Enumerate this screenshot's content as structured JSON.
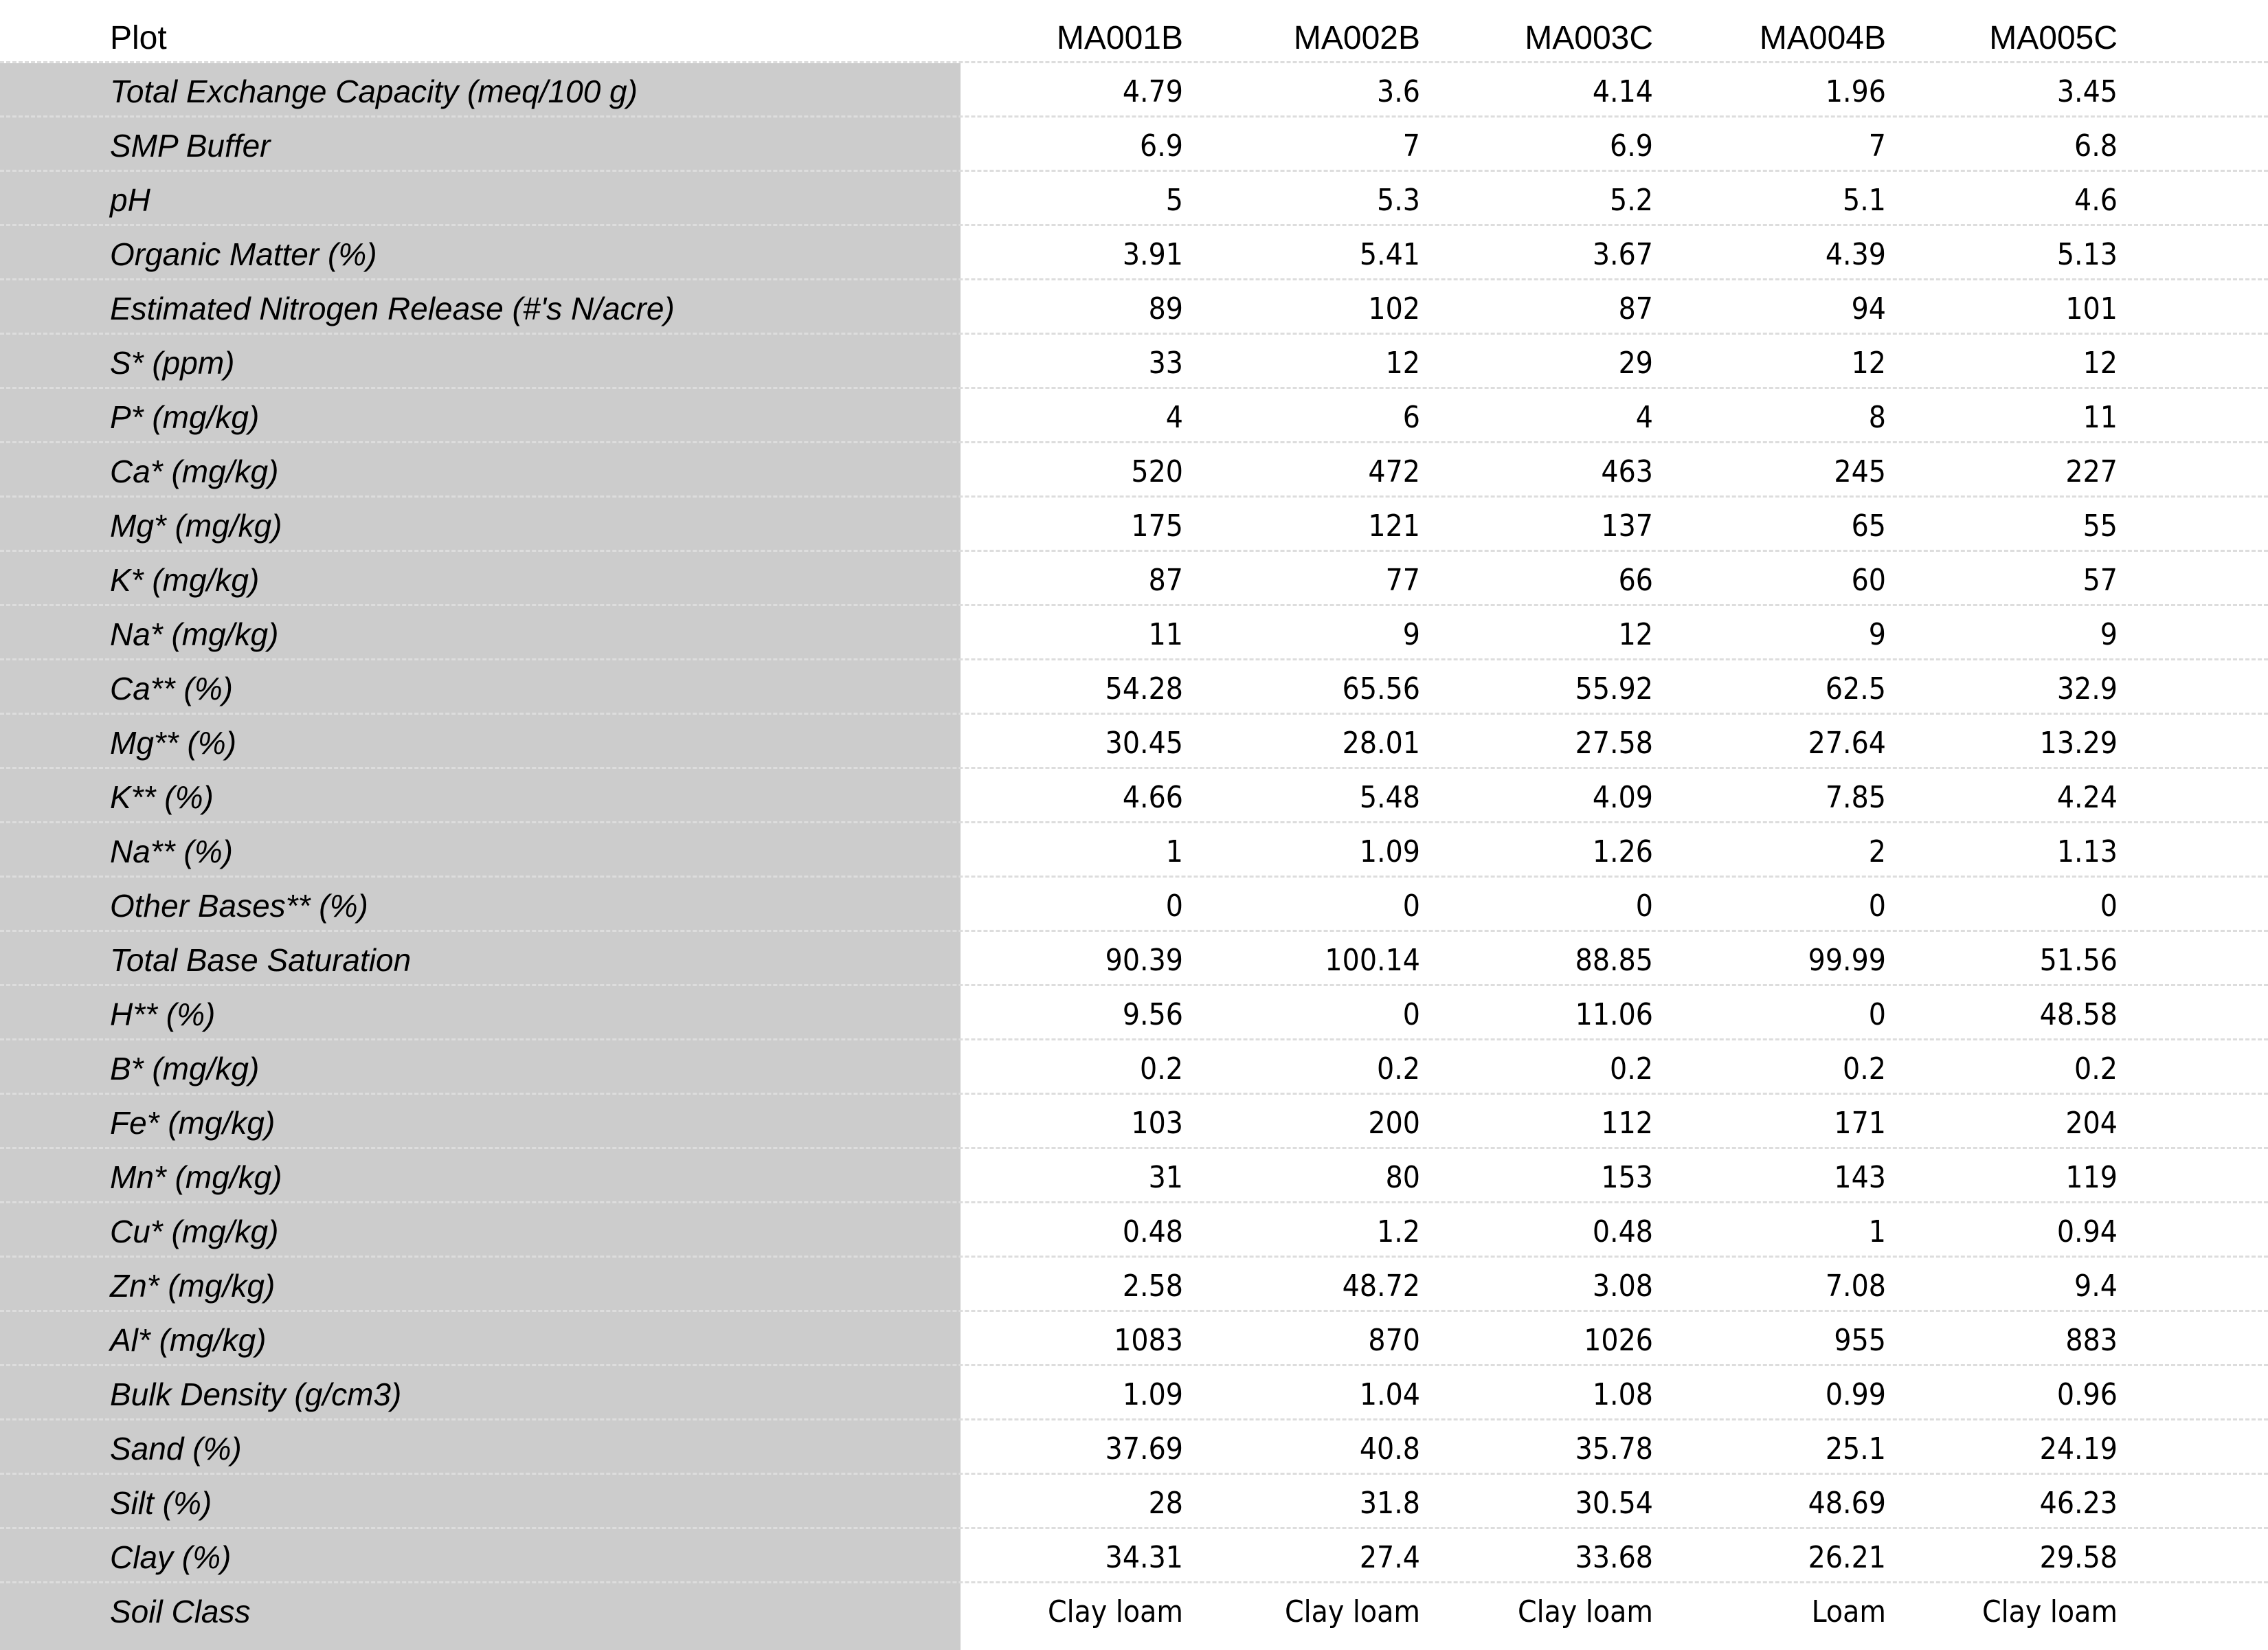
{
  "table": {
    "header_label": "Plot",
    "columns": [
      "MA001B",
      "MA002B",
      "MA003C",
      "MA004B",
      "MA005C"
    ],
    "rows": [
      {
        "label": "Total Exchange Capacity (meq/100 g)",
        "values": [
          "4.79",
          "3.6",
          "4.14",
          "1.96",
          "3.45"
        ]
      },
      {
        "label": "SMP Buffer",
        "values": [
          "6.9",
          "7",
          "6.9",
          "7",
          "6.8"
        ]
      },
      {
        "label": "pH",
        "values": [
          "5",
          "5.3",
          "5.2",
          "5.1",
          "4.6"
        ]
      },
      {
        "label": "Organic Matter (%)",
        "values": [
          "3.91",
          "5.41",
          "3.67",
          "4.39",
          "5.13"
        ]
      },
      {
        "label": "Estimated Nitrogen Release (#'s N/acre)",
        "values": [
          "89",
          "102",
          "87",
          "94",
          "101"
        ]
      },
      {
        "label": "S* (ppm)",
        "values": [
          "33",
          "12",
          "29",
          "12",
          "12"
        ]
      },
      {
        "label": "P* (mg/kg)",
        "values": [
          "4",
          "6",
          "4",
          "8",
          "11"
        ]
      },
      {
        "label": "Ca* (mg/kg)",
        "values": [
          "520",
          "472",
          "463",
          "245",
          "227"
        ]
      },
      {
        "label": "Mg* (mg/kg)",
        "values": [
          "175",
          "121",
          "137",
          "65",
          "55"
        ]
      },
      {
        "label": "K* (mg/kg)",
        "values": [
          "87",
          "77",
          "66",
          "60",
          "57"
        ]
      },
      {
        "label": "Na* (mg/kg)",
        "values": [
          "11",
          "9",
          "12",
          "9",
          "9"
        ]
      },
      {
        "label": "Ca** (%)",
        "values": [
          "54.28",
          "65.56",
          "55.92",
          "62.5",
          "32.9"
        ]
      },
      {
        "label": "Mg** (%)",
        "values": [
          "30.45",
          "28.01",
          "27.58",
          "27.64",
          "13.29"
        ]
      },
      {
        "label": "K** (%)",
        "values": [
          "4.66",
          "5.48",
          "4.09",
          "7.85",
          "4.24"
        ]
      },
      {
        "label": "Na** (%)",
        "values": [
          "1",
          "1.09",
          "1.26",
          "2",
          "1.13"
        ]
      },
      {
        "label": "Other Bases** (%)",
        "values": [
          "0",
          "0",
          "0",
          "0",
          "0"
        ]
      },
      {
        "label": "Total Base Saturation",
        "values": [
          "90.39",
          "100.14",
          "88.85",
          "99.99",
          "51.56"
        ]
      },
      {
        "label": "H** (%)",
        "values": [
          "9.56",
          "0",
          "11.06",
          "0",
          "48.58"
        ]
      },
      {
        "label": "B* (mg/kg)",
        "values": [
          "0.2",
          "0.2",
          "0.2",
          "0.2",
          "0.2"
        ]
      },
      {
        "label": "Fe* (mg/kg)",
        "values": [
          "103",
          "200",
          "112",
          "171",
          "204"
        ]
      },
      {
        "label": "Mn* (mg/kg)",
        "values": [
          "31",
          "80",
          "153",
          "143",
          "119"
        ]
      },
      {
        "label": "Cu* (mg/kg)",
        "values": [
          "0.48",
          "1.2",
          "0.48",
          "1",
          "0.94"
        ]
      },
      {
        "label": "Zn* (mg/kg)",
        "values": [
          "2.58",
          "48.72",
          "3.08",
          "7.08",
          "9.4"
        ]
      },
      {
        "label": "Al* (mg/kg)",
        "values": [
          "1083",
          "870",
          "1026",
          "955",
          "883"
        ]
      },
      {
        "label": "Bulk Density (g/cm3)",
        "values": [
          "1.09",
          "1.04",
          "1.08",
          "0.99",
          "0.96"
        ]
      },
      {
        "label": "Sand (%)",
        "values": [
          "37.69",
          "40.8",
          "35.78",
          "25.1",
          "24.19"
        ]
      },
      {
        "label": "Silt (%)",
        "values": [
          "28",
          "31.8",
          "30.54",
          "48.69",
          "46.23"
        ]
      },
      {
        "label": "Clay (%)",
        "values": [
          "34.31",
          "27.4",
          "33.68",
          "26.21",
          "29.58"
        ]
      },
      {
        "label": "Soil Class",
        "values": [
          "Clay loam",
          "Clay loam",
          "Clay loam",
          "Loam",
          "Clay loam"
        ]
      }
    ]
  }
}
